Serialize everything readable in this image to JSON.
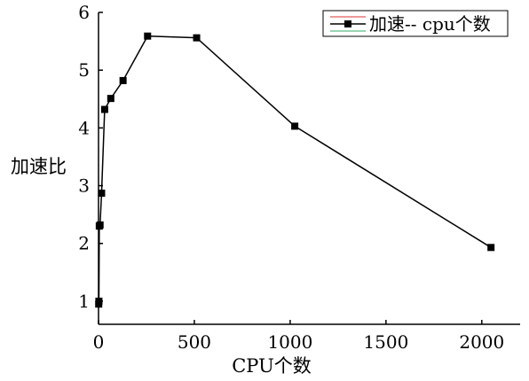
{
  "chart_data": {
    "type": "line",
    "title": "",
    "xlabel": "CPU个数",
    "ylabel": "加速比",
    "xlim": [
      0,
      2200
    ],
    "ylim": [
      0.6,
      6
    ],
    "xticks": [
      0,
      500,
      1000,
      1500,
      2000
    ],
    "yticks": [
      1,
      2,
      3,
      4,
      5,
      6
    ],
    "grid": false,
    "legend_position": "top-right",
    "series": [
      {
        "name": "加速-- cpu个数",
        "color": "#000000",
        "marker": "square",
        "x": [
          1,
          2,
          4,
          8,
          16,
          32,
          64,
          128,
          256,
          512,
          1024,
          2048
        ],
        "y": [
          0.95,
          1.0,
          2.3,
          2.32,
          2.87,
          4.32,
          4.51,
          4.82,
          5.59,
          5.56,
          4.03,
          1.93
        ]
      }
    ]
  }
}
